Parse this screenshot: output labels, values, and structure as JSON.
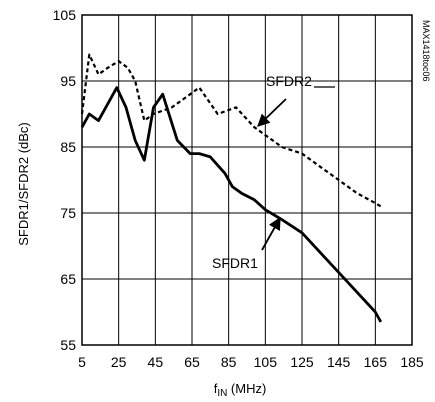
{
  "chart_data": {
    "type": "line",
    "xlabel_main": "f",
    "xlabel_sub": "IN",
    "xlabel_unit": " (MHz)",
    "ylabel": "SFDR1/SFDR2 (dBc)",
    "xlim": [
      5,
      185
    ],
    "ylim": [
      55,
      105
    ],
    "xticks": [
      5,
      25,
      45,
      65,
      85,
      105,
      125,
      145,
      165,
      185
    ],
    "yticks": [
      55,
      65,
      75,
      85,
      95,
      105
    ],
    "grid": true,
    "watermark": "MAX1418toc06",
    "series": [
      {
        "name": "SFDR1",
        "style": "solid",
        "x": [
          5,
          9,
          14,
          24,
          29,
          34,
          39,
          44,
          49,
          57,
          64,
          69,
          75,
          83,
          87,
          92,
          99,
          105,
          114,
          125,
          135,
          145,
          155,
          165,
          168
        ],
        "y": [
          88,
          90,
          89,
          94,
          91,
          86,
          83,
          91,
          93,
          86,
          84,
          84,
          83.5,
          81,
          79,
          78,
          77,
          75.5,
          74,
          72,
          69,
          66,
          63,
          60,
          58.5
        ]
      },
      {
        "name": "SFDR2",
        "style": "dashed",
        "x": [
          5,
          9,
          14,
          19,
          25,
          30,
          34,
          39,
          44,
          54,
          64,
          69,
          79,
          84,
          89,
          99,
          104,
          114,
          125,
          135,
          145,
          155,
          165,
          168
        ],
        "y": [
          90,
          99,
          96,
          97,
          98,
          97,
          95,
          89,
          90,
          91,
          93,
          94,
          90,
          90.5,
          91,
          88,
          87,
          85,
          84,
          82,
          80,
          78,
          76.5,
          76
        ]
      }
    ],
    "annotations": [
      {
        "text": "SFDR2",
        "series": "SFDR2"
      },
      {
        "text": "SFDR1",
        "series": "SFDR1"
      }
    ]
  }
}
